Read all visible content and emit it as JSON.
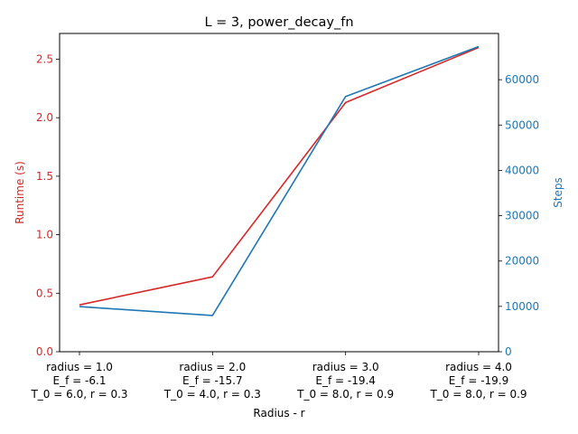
{
  "chart_data": {
    "type": "line",
    "title": "L = 3, power_decay_fn",
    "xlabel": "Radius - r",
    "categories": [
      [
        "radius = 1.0",
        "E_f = -6.1",
        "T_0 = 6.0, r = 0.3"
      ],
      [
        "radius = 2.0",
        "E_f = -15.7",
        "T_0 = 4.0, r = 0.3"
      ],
      [
        "radius = 3.0",
        "E_f = -19.4",
        "T_0 = 8.0, r = 0.9"
      ],
      [
        "radius = 4.0",
        "E_f = -19.9",
        "T_0 = 8.0, r = 0.9"
      ]
    ],
    "series": [
      {
        "axis": "left",
        "ylabel": "Runtime (s)",
        "color": "#d62728",
        "values": [
          0.4,
          0.64,
          2.13,
          2.6
        ],
        "ylim": [
          0,
          2.72
        ],
        "ticks": [
          0.0,
          0.5,
          1.0,
          1.5,
          2.0,
          2.5
        ],
        "tick_labels": [
          "0.0",
          "0.5",
          "1.0",
          "1.5",
          "2.0",
          "2.5"
        ]
      },
      {
        "axis": "right",
        "ylabel": "Steps",
        "color": "#1f77b4",
        "values": [
          9950,
          8000,
          56300,
          67300
        ],
        "ylim": [
          0,
          70200
        ],
        "ticks": [
          0,
          10000,
          20000,
          30000,
          40000,
          50000,
          60000
        ],
        "tick_labels": [
          "0",
          "10000",
          "20000",
          "30000",
          "40000",
          "50000",
          "60000"
        ]
      }
    ],
    "grid": false
  }
}
